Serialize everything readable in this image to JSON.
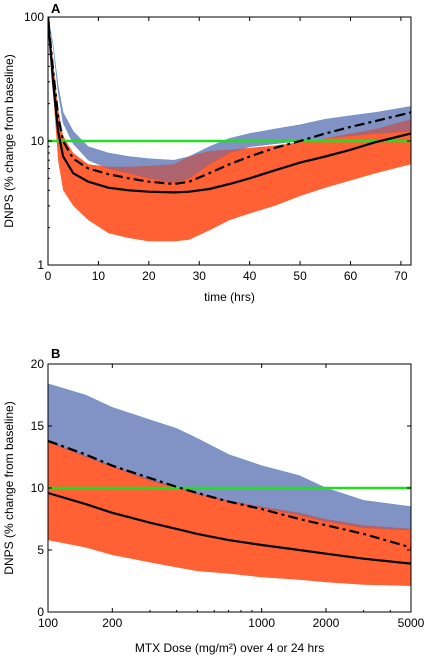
{
  "chart_data": [
    {
      "panel": "A",
      "type": "area",
      "xlabel": "time (hrs)",
      "ylabel": "DNPS (% change from baseline)",
      "xlim": [
        0,
        72
      ],
      "ylim": [
        1,
        100
      ],
      "yscale": "log",
      "x_ticks": [
        "0",
        "10",
        "20",
        "30",
        "40",
        "50",
        "60",
        "70"
      ],
      "y_ticks": [
        "1",
        "10",
        "100"
      ],
      "grid": false,
      "threshold": 10,
      "series": [
        {
          "style": "band",
          "color": "#88bff0",
          "x": [
            0,
            1,
            2,
            3,
            5,
            8,
            12,
            16,
            20,
            25,
            28,
            32,
            36,
            40,
            45,
            50,
            55,
            60,
            65,
            72
          ],
          "upper": [
            100,
            60,
            28,
            17,
            12,
            9,
            8,
            7.5,
            7.2,
            7,
            7.5,
            9,
            10.5,
            11.5,
            12.5,
            13.5,
            15,
            16,
            17,
            19
          ],
          "lower": [
            100,
            60,
            25,
            14,
            9.5,
            7,
            6,
            5.5,
            5,
            4.6,
            5,
            6.5,
            8,
            9,
            9.5,
            10,
            10.5,
            11,
            11.5,
            12
          ]
        },
        {
          "style": "band",
          "color": "#ff4411",
          "x": [
            0,
            1,
            2,
            3,
            5,
            8,
            12,
            16,
            20,
            25,
            28,
            32,
            36,
            40,
            45,
            50,
            55,
            60,
            65,
            72
          ],
          "upper": [
            100,
            45,
            18,
            11,
            8,
            6.5,
            6.2,
            6.2,
            6.3,
            6.5,
            7.5,
            8.3,
            8.5,
            8.8,
            9.2,
            9.8,
            10.5,
            11.5,
            12.5,
            15
          ],
          "lower": [
            100,
            25,
            7,
            4,
            3,
            2.3,
            1.8,
            1.65,
            1.55,
            1.55,
            1.6,
            1.9,
            2.3,
            2.6,
            3,
            3.6,
            4.2,
            4.8,
            5.5,
            6.5
          ]
        },
        {
          "style": "solid",
          "color": "#000000",
          "x": [
            0,
            1,
            2,
            3,
            5,
            8,
            12,
            16,
            20,
            25,
            28,
            32,
            36,
            40,
            45,
            50,
            55,
            60,
            65,
            72
          ],
          "y": [
            100,
            30,
            12,
            7.5,
            5.5,
            4.7,
            4.2,
            4,
            3.9,
            3.85,
            3.9,
            4.1,
            4.5,
            5,
            5.8,
            6.7,
            7.5,
            8.5,
            9.8,
            11.5
          ]
        },
        {
          "style": "dashdot",
          "color": "#000000",
          "x": [
            0,
            1,
            2,
            3,
            5,
            8,
            12,
            16,
            20,
            25,
            28,
            32,
            36,
            40,
            45,
            50,
            55,
            60,
            65,
            72
          ],
          "y": [
            100,
            38,
            16,
            10,
            7.2,
            6,
            5.4,
            5,
            4.7,
            4.5,
            4.7,
            5.5,
            6.5,
            7.5,
            8.8,
            10,
            11.5,
            13,
            14.5,
            17
          ]
        }
      ]
    },
    {
      "panel": "B",
      "type": "area",
      "xlabel": "MTX Dose (mg/m²) over 4 or 24 hrs",
      "ylabel": "DNPS (% change from baseline)",
      "xlim": [
        100,
        5000
      ],
      "ylim": [
        0,
        20
      ],
      "xscale": "log",
      "x_ticks": [
        "100",
        "200",
        "1000",
        "2000",
        "5000"
      ],
      "y_ticks": [
        "0",
        "5",
        "10",
        "15",
        "20"
      ],
      "grid": false,
      "threshold": 10,
      "series": [
        {
          "style": "band",
          "color": "#88bff0",
          "x": [
            100,
            150,
            200,
            300,
            400,
            500,
            700,
            1000,
            1500,
            2000,
            3000,
            5000
          ],
          "upper": [
            18.4,
            17.5,
            16.5,
            15.5,
            14.8,
            14,
            12.7,
            11.8,
            11,
            10,
            9,
            8.5
          ],
          "lower": [
            13.7,
            12.5,
            11.7,
            10.6,
            10,
            9.5,
            8.9,
            8.4,
            7.8,
            7.3,
            6.8,
            6.6
          ]
        },
        {
          "style": "band",
          "color": "#ff4411",
          "x": [
            100,
            150,
            200,
            300,
            400,
            500,
            700,
            1000,
            1500,
            2000,
            3000,
            5000
          ],
          "upper": [
            13.8,
            12.6,
            11.8,
            10.7,
            10.1,
            9.6,
            9,
            8.5,
            8,
            7.5,
            7,
            6.7
          ],
          "lower": [
            5.8,
            5.2,
            4.6,
            4,
            3.6,
            3.3,
            3.1,
            2.8,
            2.6,
            2.4,
            2.2,
            2.1
          ]
        },
        {
          "style": "solid",
          "color": "#000000",
          "x": [
            100,
            150,
            200,
            300,
            400,
            500,
            700,
            1000,
            1500,
            2000,
            3000,
            5000
          ],
          "y": [
            9.6,
            8.7,
            8,
            7.2,
            6.7,
            6.3,
            5.8,
            5.4,
            5,
            4.7,
            4.3,
            3.9
          ]
        },
        {
          "style": "dashdot",
          "color": "#000000",
          "x": [
            100,
            150,
            200,
            300,
            400,
            500,
            700,
            1000,
            1500,
            2000,
            3000,
            5000
          ],
          "y": [
            13.8,
            12.7,
            11.8,
            10.8,
            10.1,
            9.6,
            8.9,
            8.3,
            7.5,
            7,
            6.3,
            5.2
          ]
        }
      ]
    }
  ]
}
